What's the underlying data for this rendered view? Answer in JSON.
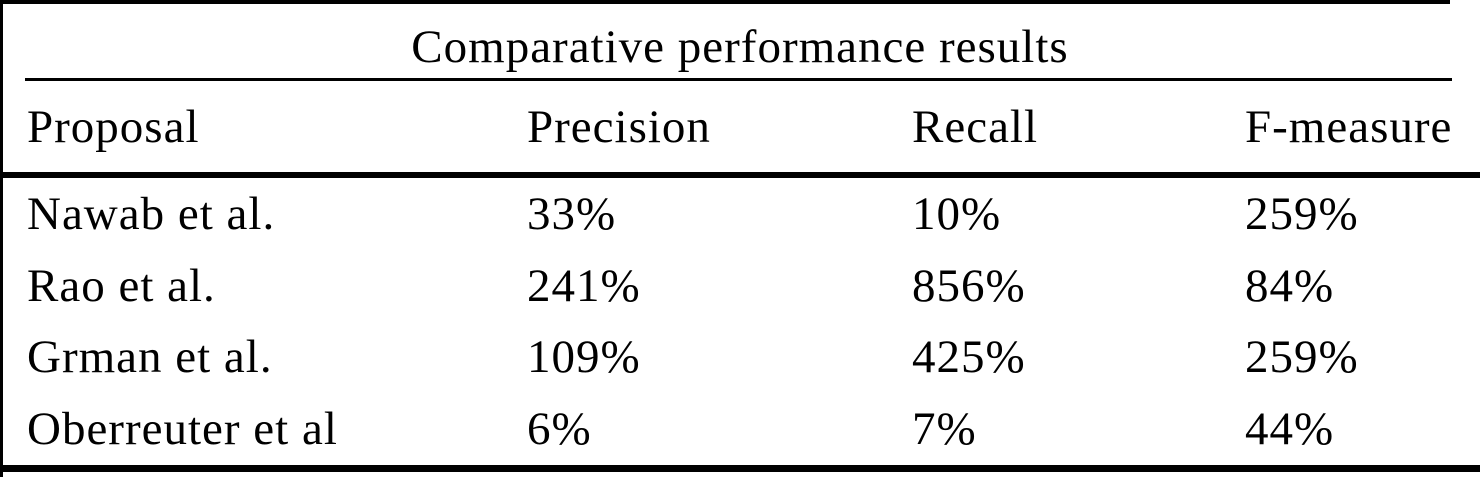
{
  "table": {
    "title": "Comparative performance results",
    "columns": [
      "Proposal",
      "Precision",
      "Recall",
      "F-measure"
    ],
    "rows": [
      {
        "proposal": "Nawab et al.",
        "precision": "33%",
        "recall": "10%",
        "f_measure": "259%"
      },
      {
        "proposal": "Rao et al.",
        "precision": "241%",
        "recall": "856%",
        "f_measure": "84%"
      },
      {
        "proposal": "Grman et al.",
        "precision": "109%",
        "recall": "425%",
        "f_measure": "259%"
      },
      {
        "proposal": "Oberreuter et al",
        "precision": "6%",
        "recall": "7%",
        "f_measure": "44%"
      }
    ],
    "colors": {
      "text": "#000000",
      "background": "#ffffff",
      "rule": "#000000"
    }
  },
  "chart_data": {
    "type": "table",
    "title": "Comparative performance results",
    "columns": [
      "Proposal",
      "Precision",
      "Recall",
      "F-measure"
    ],
    "rows": [
      [
        "Nawab et al.",
        "33%",
        "10%",
        "259%"
      ],
      [
        "Rao et al.",
        "241%",
        "856%",
        "84%"
      ],
      [
        "Grman et al.",
        "109%",
        "425%",
        "259%"
      ],
      [
        "Oberreuter et al",
        "6%",
        "7%",
        "44%"
      ]
    ]
  }
}
